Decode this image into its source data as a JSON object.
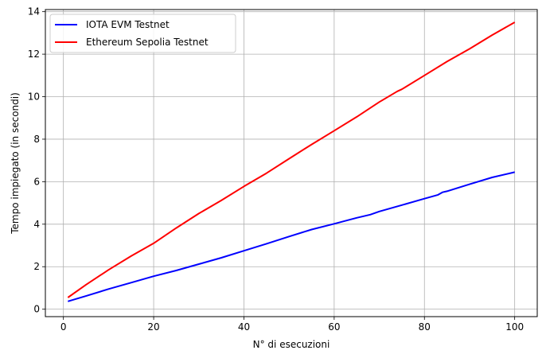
{
  "chart_data": {
    "type": "line",
    "xlabel": "N° di esecuzioni",
    "ylabel": "Tempo impiegato (in secondi)",
    "xlim": [
      -4,
      105
    ],
    "ylim": [
      -0.35,
      14.1
    ],
    "xticks": [
      0,
      20,
      40,
      60,
      80,
      100
    ],
    "yticks": [
      0,
      2,
      4,
      6,
      8,
      10,
      12,
      14
    ],
    "grid": true,
    "legend_position": "top-left",
    "series": [
      {
        "name": "IOTA EVM Testnet",
        "color": "#0000ff",
        "x": [
          1,
          5,
          10,
          15,
          20,
          25,
          30,
          35,
          40,
          45,
          50,
          55,
          60,
          65,
          68,
          70,
          75,
          80,
          83,
          84,
          85,
          90,
          95,
          100
        ],
        "y": [
          0.37,
          0.62,
          0.95,
          1.25,
          1.55,
          1.82,
          2.12,
          2.42,
          2.75,
          3.08,
          3.42,
          3.75,
          4.02,
          4.3,
          4.45,
          4.6,
          4.9,
          5.2,
          5.38,
          5.5,
          5.55,
          5.88,
          6.2,
          6.45
        ]
      },
      {
        "name": "Ethereum Sepolia Testnet",
        "color": "#ff0000",
        "x": [
          1,
          5,
          10,
          15,
          20,
          25,
          30,
          35,
          40,
          45,
          50,
          55,
          60,
          65,
          70,
          74,
          75,
          80,
          85,
          90,
          95,
          100
        ],
        "y": [
          0.55,
          1.15,
          1.85,
          2.5,
          3.1,
          3.82,
          4.5,
          5.12,
          5.78,
          6.4,
          7.08,
          7.75,
          8.4,
          9.05,
          9.75,
          10.25,
          10.35,
          11.0,
          11.65,
          12.25,
          12.9,
          13.5
        ]
      }
    ]
  }
}
